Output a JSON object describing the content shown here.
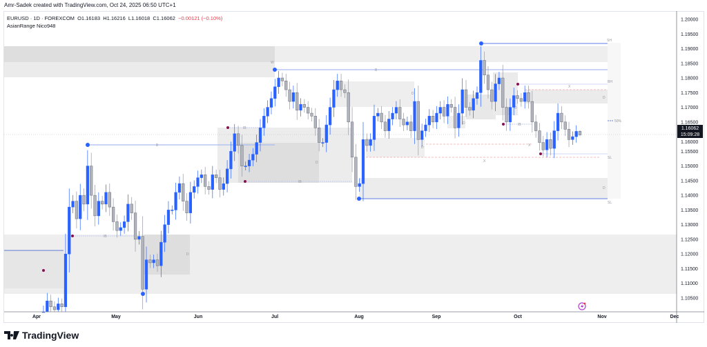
{
  "credit": "Amr-Sadek created with TradingView.com, Oct 24, 2025 06:50 UTC+1",
  "legend": {
    "symbol": "EURUSD · 1D · FOREXCOM",
    "open": "O1.16183",
    "high": "H1.16216",
    "low": "L1.16018",
    "close": "C1.16062",
    "change": "−0.00121 (−0.10%)",
    "indicator": "AsianRange Nico948"
  },
  "last_price": {
    "price": "1.16062",
    "countdown": "15:09:28"
  },
  "brand": "TradingView",
  "zone_labels": {
    "sh": "SH",
    "bh": "BH",
    "sl": "SL",
    "bl": "BL",
    "mid": "50%",
    "d": "D",
    "x": "X",
    "ib": "IB",
    "w": "W",
    "b": "B"
  },
  "colors": {
    "up": "#2962ff",
    "down": "#b2b5be",
    "swing_dot": "#2962ff",
    "pivot_dot": "#880e4f",
    "zone": "#ebebeb",
    "zone_dark": "#dcdcdc",
    "alert": "#b03fd0"
  },
  "chart_data": {
    "type": "candlestick",
    "title": "EURUSD · 1D · FOREXCOM",
    "ylabel": "Price",
    "ylim": [
      1.1025,
      1.2015
    ],
    "price_ticks": [
      "1.20000",
      "1.19500",
      "1.19000",
      "1.18500",
      "1.18000",
      "1.17500",
      "1.17000",
      "1.16500",
      "1.16000",
      "1.15500",
      "1.15000",
      "1.14500",
      "1.14000",
      "1.13500",
      "1.13000",
      "1.12500",
      "1.12000",
      "1.11500",
      "1.11000",
      "1.10500"
    ],
    "time_ticks": [
      "Apr",
      "May",
      "Jun",
      "Jul",
      "Aug",
      "Sep",
      "Oct",
      "Nov",
      "Dec"
    ],
    "last_bar": {
      "open": 1.16183,
      "high": 1.16216,
      "low": 1.16018,
      "close": 1.16062
    },
    "closes": [
      1.1,
      1.104,
      1.102,
      1.101,
      1.103,
      1.102,
      1.12,
      1.136,
      1.138,
      1.132,
      1.14,
      1.137,
      1.15,
      1.14,
      1.133,
      1.138,
      1.137,
      1.141,
      1.136,
      1.131,
      1.128,
      1.129,
      1.131,
      1.137,
      1.134,
      1.125,
      1.126,
      1.108,
      1.118,
      1.117,
      1.118,
      1.116,
      1.124,
      1.13,
      1.135,
      1.135,
      1.141,
      1.144,
      1.138,
      1.134,
      1.141,
      1.143,
      1.146,
      1.147,
      1.143,
      1.142,
      1.147,
      1.146,
      1.142,
      1.144,
      1.149,
      1.155,
      1.161,
      1.157,
      1.15,
      1.15,
      1.152,
      1.154,
      1.158,
      1.163,
      1.167,
      1.17,
      1.173,
      1.177,
      1.18,
      1.179,
      1.176,
      1.172,
      1.175,
      1.169,
      1.171,
      1.17,
      1.168,
      1.167,
      1.163,
      1.158,
      1.158,
      1.164,
      1.17,
      1.176,
      1.179,
      1.176,
      1.175,
      1.165,
      1.153,
      1.143,
      1.144,
      1.159,
      1.157,
      1.159,
      1.167,
      1.168,
      1.165,
      1.162,
      1.166,
      1.168,
      1.17,
      1.166,
      1.164,
      1.165,
      1.162,
      1.172,
      1.159,
      1.162,
      1.164,
      1.167,
      1.165,
      1.168,
      1.17,
      1.167,
      1.171,
      1.17,
      1.163,
      1.168,
      1.176,
      1.17,
      1.169,
      1.173,
      1.175,
      1.186,
      1.181,
      1.176,
      1.172,
      1.178,
      1.18,
      1.17,
      1.165,
      1.17,
      1.174,
      1.173,
      1.172,
      1.175,
      1.172,
      1.165,
      1.162,
      1.158,
      1.1555,
      1.159,
      1.156,
      1.162,
      1.168,
      1.165,
      1.1625,
      1.159,
      1.16,
      1.1618,
      1.1606
    ]
  }
}
